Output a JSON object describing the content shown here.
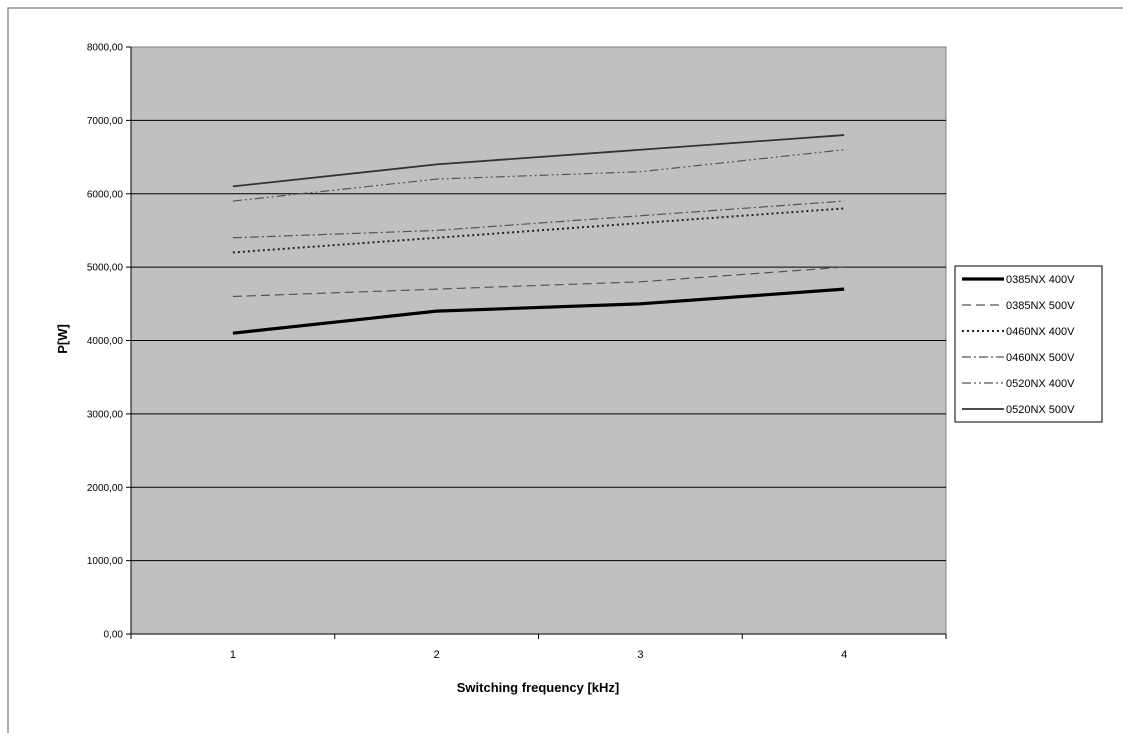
{
  "chart_data": {
    "type": "line",
    "title": "",
    "xlabel": "Switching frequency [kHz]",
    "ylabel": "P[W]",
    "categories": [
      "1",
      "2",
      "3",
      "4"
    ],
    "y_ticks": [
      "0,00",
      "1000,00",
      "2000,00",
      "3000,00",
      "4000,00",
      "5000,00",
      "6000,00",
      "7000,00",
      "8000,00"
    ],
    "ylim": [
      0,
      8000
    ],
    "grid": "horizontal major gridlines",
    "plot_background": "#c0c0c0",
    "legend_position": "right",
    "series": [
      {
        "name": "0385NX 400V",
        "values": [
          4100,
          4400,
          4500,
          4700
        ],
        "color": "#000000",
        "style": "thick-solid"
      },
      {
        "name": "0385NX 500V",
        "values": [
          4600,
          4700,
          4800,
          5000
        ],
        "color": "#555555",
        "style": "dashed"
      },
      {
        "name": "0460NX 400V",
        "values": [
          5200,
          5400,
          5600,
          5800
        ],
        "color": "#222222",
        "style": "dotted"
      },
      {
        "name": "0460NX 500V",
        "values": [
          5400,
          5500,
          5700,
          5900
        ],
        "color": "#555555",
        "style": "dash-dot"
      },
      {
        "name": "0520NX 400V",
        "values": [
          5900,
          6200,
          6300,
          6600
        ],
        "color": "#555555",
        "style": "dash-dot-dot"
      },
      {
        "name": "0520NX 500V",
        "values": [
          6100,
          6400,
          6600,
          6800
        ],
        "color": "#333333",
        "style": "solid"
      }
    ]
  }
}
